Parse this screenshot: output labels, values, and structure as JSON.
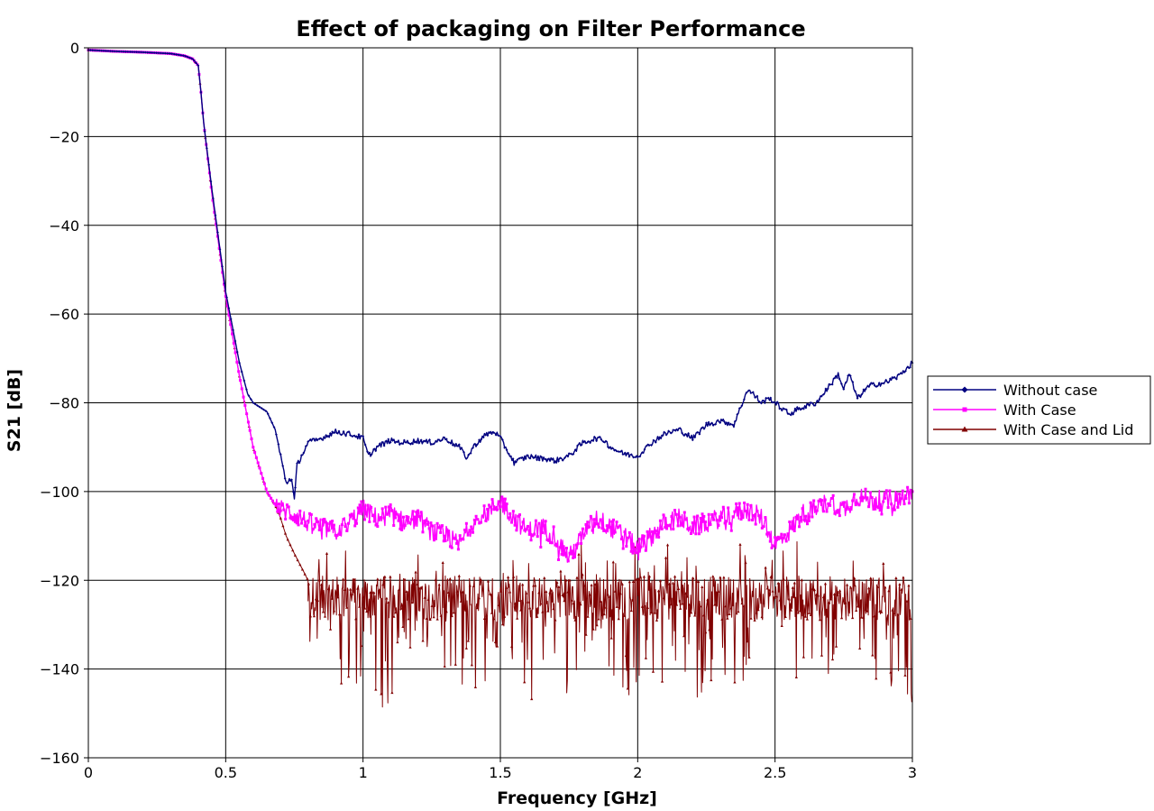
{
  "chart_data": {
    "type": "line",
    "title": "Effect of packaging on Filter Performance",
    "xlabel": "Frequency [GHz]",
    "ylabel": "S21 [dB]",
    "xlim": [
      0,
      3
    ],
    "ylim": [
      -160,
      0
    ],
    "xticks": [
      0,
      0.5,
      1,
      1.5,
      2,
      2.5,
      3
    ],
    "xtick_labels": [
      "0",
      "0.5",
      "1",
      "1.5",
      "2",
      "2.5",
      "3"
    ],
    "yticks": [
      0,
      -20,
      -40,
      -60,
      -80,
      -100,
      -120,
      -140,
      -160
    ],
    "ytick_labels": [
      "0",
      "−20",
      "−40",
      "−60",
      "−80",
      "−100",
      "−120",
      "−140",
      "−160"
    ],
    "grid": true,
    "legend_position": "right",
    "series": [
      {
        "name": "Without case",
        "color": "#000080",
        "marker": "diamond",
        "x": [
          0,
          0.1,
          0.2,
          0.3,
          0.35,
          0.38,
          0.4,
          0.41,
          0.42,
          0.45,
          0.5,
          0.55,
          0.58,
          0.6,
          0.65,
          0.68,
          0.7,
          0.72,
          0.74,
          0.75,
          0.76,
          0.8,
          0.85,
          0.9,
          0.95,
          1.0,
          1.02,
          1.05,
          1.1,
          1.15,
          1.2,
          1.25,
          1.3,
          1.35,
          1.38,
          1.4,
          1.45,
          1.48,
          1.5,
          1.55,
          1.6,
          1.65,
          1.7,
          1.75,
          1.8,
          1.85,
          1.88,
          1.9,
          1.95,
          2.0,
          2.05,
          2.1,
          2.15,
          2.2,
          2.25,
          2.3,
          2.35,
          2.4,
          2.42,
          2.45,
          2.48,
          2.5,
          2.55,
          2.6,
          2.65,
          2.7,
          2.73,
          2.75,
          2.77,
          2.8,
          2.83,
          2.85,
          2.9,
          2.95,
          3.0
        ],
        "y": [
          -0.5,
          -0.8,
          -1.0,
          -1.3,
          -1.8,
          -2.5,
          -4,
          -10,
          -17,
          -32,
          -55,
          -71,
          -78,
          -80,
          -82,
          -86,
          -92,
          -98,
          -97,
          -102,
          -94,
          -89,
          -88,
          -86.5,
          -87,
          -88,
          -92,
          -90,
          -88.5,
          -89,
          -88.5,
          -89,
          -88,
          -90,
          -92.5,
          -90,
          -87,
          -86.5,
          -88,
          -93.5,
          -92,
          -92.5,
          -93,
          -92,
          -89,
          -88,
          -88.5,
          -90,
          -91.5,
          -92,
          -89,
          -87,
          -86,
          -88,
          -85,
          -84,
          -85,
          -77,
          -78,
          -80,
          -79,
          -80,
          -82.5,
          -81,
          -80,
          -76,
          -73.5,
          -77,
          -73.5,
          -79,
          -77,
          -76,
          -75.5,
          -74,
          -71
        ]
      },
      {
        "name": "With Case",
        "color": "#FF00FF",
        "marker": "square",
        "x": [
          0,
          0.1,
          0.2,
          0.3,
          0.35,
          0.38,
          0.4,
          0.41,
          0.42,
          0.45,
          0.5,
          0.55,
          0.6,
          0.65,
          0.68,
          0.7,
          0.75,
          0.8,
          0.85,
          0.9,
          0.95,
          1.0,
          1.05,
          1.1,
          1.15,
          1.2,
          1.25,
          1.3,
          1.35,
          1.4,
          1.45,
          1.5,
          1.55,
          1.6,
          1.65,
          1.7,
          1.75,
          1.8,
          1.85,
          1.9,
          1.95,
          2.0,
          2.05,
          2.1,
          2.15,
          2.2,
          2.25,
          2.3,
          2.35,
          2.4,
          2.45,
          2.5,
          2.55,
          2.6,
          2.65,
          2.7,
          2.75,
          2.8,
          2.85,
          2.9,
          2.95,
          3.0
        ],
        "y": [
          -0.5,
          -0.8,
          -1.0,
          -1.3,
          -1.8,
          -2.5,
          -4,
          -10,
          -17,
          -33,
          -56,
          -74,
          -90,
          -100,
          -103,
          -104,
          -105,
          -107,
          -108,
          -109,
          -107,
          -104,
          -106,
          -105,
          -107,
          -106,
          -109,
          -110,
          -112,
          -107,
          -105,
          -102,
          -106,
          -109,
          -108,
          -110,
          -115,
          -110,
          -106,
          -108,
          -110,
          -113,
          -110,
          -107,
          -106,
          -108,
          -107,
          -106,
          -105,
          -104,
          -106,
          -112,
          -109,
          -105,
          -104,
          -102,
          -104,
          -101,
          -102,
          -102,
          -102,
          -100
        ]
      },
      {
        "name": "With Case and Lid",
        "color": "#800000",
        "marker": "triangle",
        "x": [
          0,
          0.1,
          0.2,
          0.3,
          0.35,
          0.38,
          0.4,
          0.41,
          0.42,
          0.45,
          0.5,
          0.55,
          0.6,
          0.65,
          0.68,
          0.7,
          0.72,
          0.75,
          0.8,
          3.0
        ],
        "y": [
          -0.5,
          -0.8,
          -1.0,
          -1.3,
          -1.8,
          -2.5,
          -4,
          -10,
          -17,
          -33,
          -56,
          -74,
          -90,
          -100,
          -103,
          -106,
          -110,
          -114,
          -120,
          -119
        ],
        "noise_floor": -124
      }
    ]
  }
}
